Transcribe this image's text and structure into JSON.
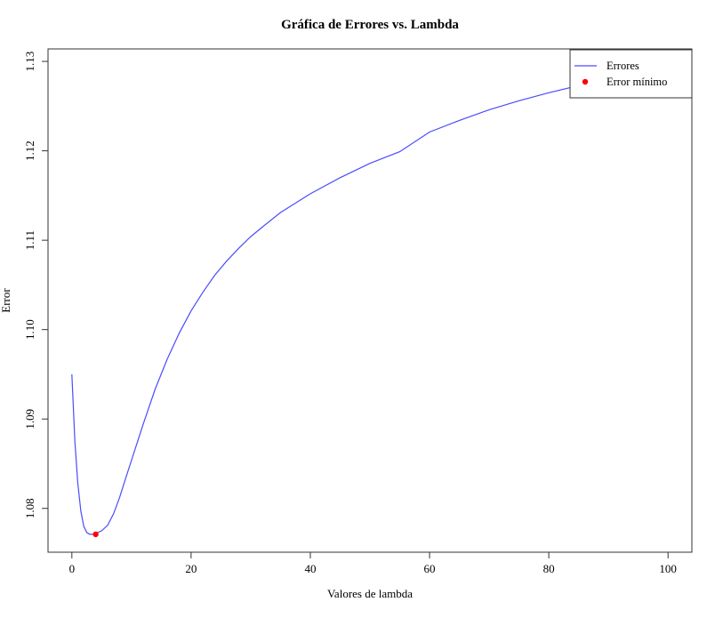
{
  "chart_data": {
    "type": "line",
    "title": "Gráfica de Errores vs. Lambda",
    "xlabel": "Valores de lambda",
    "ylabel": "Error",
    "xlim": [
      -4,
      104
    ],
    "ylim": [
      1.0751,
      1.1314
    ],
    "x_ticks": [
      0,
      20,
      40,
      60,
      80,
      100
    ],
    "y_ticks": [
      1.08,
      1.09,
      1.1,
      1.11,
      1.12,
      1.13
    ],
    "x_tick_labels": [
      "0",
      "20",
      "40",
      "60",
      "80",
      "100"
    ],
    "y_tick_labels": [
      "1.08",
      "1.09",
      "1.10",
      "1.11",
      "1.12",
      "1.13"
    ],
    "grid": false,
    "legend_position": "top-right",
    "series": [
      {
        "name": "Errores",
        "color": "#4b4bff",
        "x": [
          0,
          0.5,
          1,
          1.5,
          2,
          2.5,
          3,
          3.5,
          4,
          5,
          6,
          7,
          8,
          9,
          10,
          12,
          14,
          16,
          18,
          20,
          22,
          24,
          26,
          28,
          30,
          32,
          35,
          40,
          45,
          50,
          55,
          60,
          65,
          70,
          75,
          80,
          85,
          90,
          95,
          100
        ],
        "y": [
          1.095,
          1.0875,
          1.0828,
          1.0797,
          1.078,
          1.0773,
          1.0771,
          1.0771,
          1.0772,
          1.0775,
          1.0781,
          1.0794,
          1.0812,
          1.0833,
          1.0854,
          1.0895,
          1.0934,
          1.0967,
          1.0996,
          1.1021,
          1.1042,
          1.1061,
          1.1077,
          1.1091,
          1.1104,
          1.1115,
          1.1131,
          1.1152,
          1.117,
          1.1186,
          1.1199,
          1.1221,
          1.1234,
          1.1246,
          1.1256,
          1.1265,
          1.1273,
          1.128,
          1.1287,
          1.1293
        ]
      }
    ],
    "points": [
      {
        "name": "Error mínimo",
        "color": "#ff0000",
        "x": 4,
        "y": 1.0771
      }
    ]
  }
}
